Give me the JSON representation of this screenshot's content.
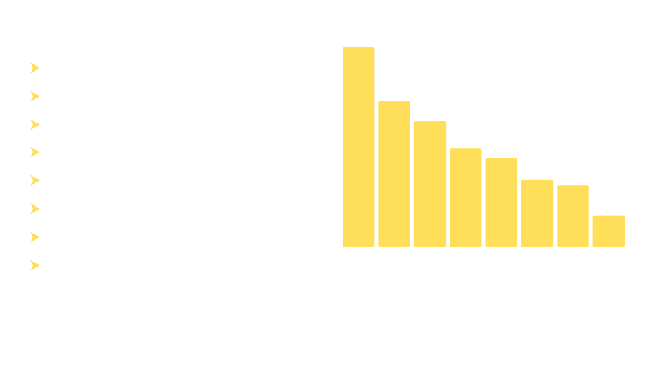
{
  "colors": {
    "accent": "#FFDE59",
    "background": "#FFFFFF"
  },
  "bullets": {
    "icon": "chevron-right-icon",
    "items": [
      {
        "text": ""
      },
      {
        "text": ""
      },
      {
        "text": ""
      },
      {
        "text": ""
      },
      {
        "text": ""
      },
      {
        "text": ""
      },
      {
        "text": ""
      },
      {
        "text": ""
      }
    ]
  },
  "chart_data": {
    "type": "bar",
    "title": "",
    "xlabel": "",
    "ylabel": "",
    "categories": [
      "",
      "",
      "",
      "",
      "",
      "",
      "",
      ""
    ],
    "values": [
      100,
      73,
      63,
      49.5,
      44.5,
      33.5,
      31,
      15.5
    ],
    "ylim": [
      0,
      100
    ],
    "grid": false,
    "axes_visible": false,
    "legend": "none"
  }
}
